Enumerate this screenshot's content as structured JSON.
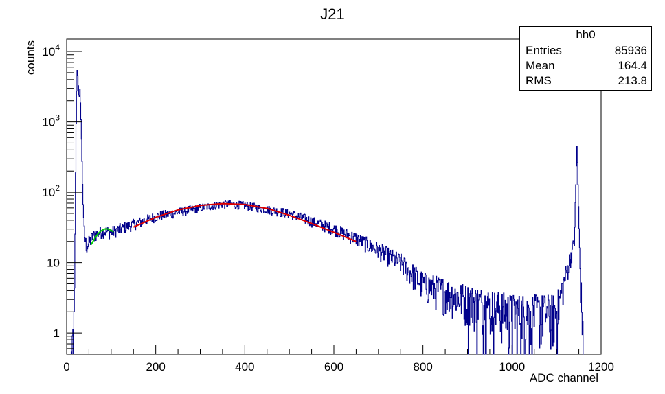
{
  "chart_data": {
    "type": "histogram",
    "title": "J21",
    "xlabel": "ADC channel",
    "ylabel": "counts",
    "xlim": [
      0,
      1200
    ],
    "ylim": [
      0.5,
      15000
    ],
    "y_scale": "log",
    "x_ticks": [
      "0",
      "200",
      "400",
      "600",
      "800",
      "1000",
      "1200"
    ],
    "y_ticks": [
      "1",
      "10",
      "10^2",
      "10^3",
      "10^4"
    ],
    "grid": false,
    "stats_box": {
      "title": "hh0",
      "rows": [
        {
          "label": "Entries",
          "value": "85936"
        },
        {
          "label": "Mean",
          "value": "164.4"
        },
        {
          "label": "RMS",
          "value": "213.8"
        }
      ]
    },
    "histogram_outline": {
      "color": "#00008b",
      "x": [
        10,
        16,
        18,
        20,
        22,
        24,
        26,
        28,
        30,
        32,
        34,
        36,
        38,
        40,
        42,
        44,
        46,
        48,
        52,
        60,
        80,
        100,
        150,
        200,
        300,
        350,
        400,
        500,
        600,
        650,
        700,
        750,
        800,
        900,
        1000,
        1100,
        1140,
        1146,
        1150,
        1154,
        1160
      ],
      "y": [
        0.5,
        1,
        3.5,
        150,
        2000,
        6000,
        3500,
        2000,
        3000,
        1200,
        400,
        120,
        40,
        25,
        20,
        18,
        17,
        18,
        20,
        24,
        28,
        27,
        35,
        45,
        60,
        68,
        65,
        50,
        30,
        22,
        15,
        10,
        5,
        3,
        2,
        2,
        20,
        500,
        40,
        5,
        1
      ]
    },
    "fit_curves": [
      {
        "color": "#00cc00",
        "x": [
          55,
          60,
          65,
          70,
          75,
          80,
          85,
          90,
          95,
          100,
          105
        ],
        "y": [
          18,
          20.5,
          23,
          25.5,
          27.5,
          29,
          30,
          30.3,
          29.8,
          28.7,
          27.3
        ]
      },
      {
        "color": "#dd0000",
        "x": [
          150,
          200,
          250,
          300,
          350,
          400,
          450,
          500,
          550,
          600,
          650
        ],
        "y": [
          32,
          44,
          56,
          65,
          69,
          67,
          59,
          47,
          36,
          27,
          20
        ]
      }
    ]
  }
}
